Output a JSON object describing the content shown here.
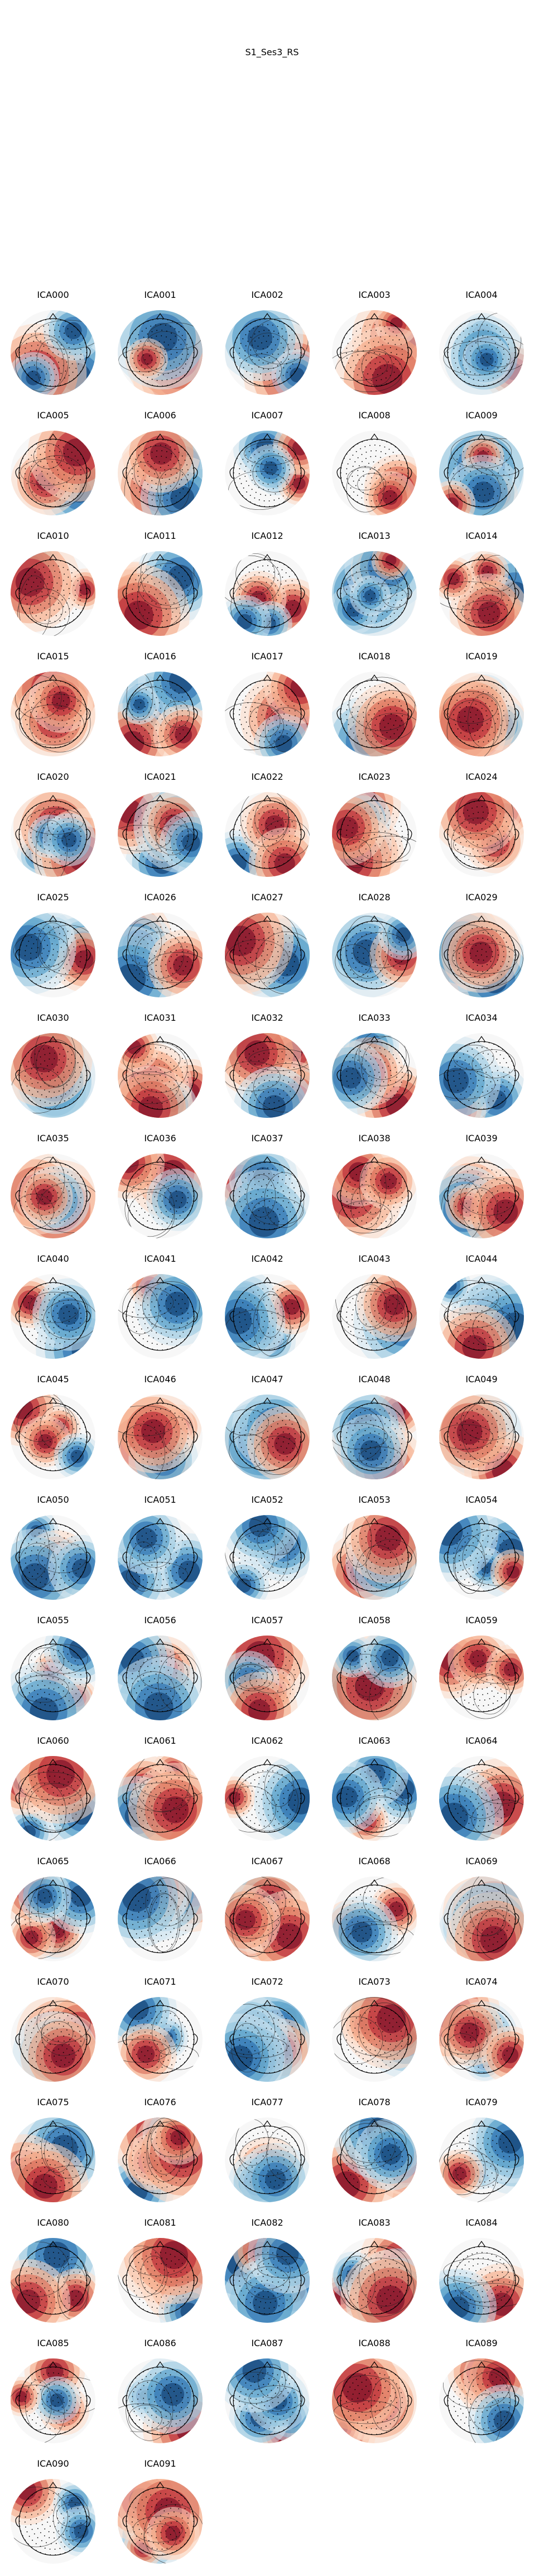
{
  "figure": {
    "title": "S1_Ses3_RS",
    "colormap": [
      "#053061",
      "#2166ac",
      "#4393c3",
      "#92c5de",
      "#d1e5f0",
      "#f7f7f7",
      "#fddbc7",
      "#f4a582",
      "#d6604d",
      "#b2182b",
      "#67001f"
    ],
    "outline_color": "#000000",
    "sensor_color": "#000000"
  },
  "components": [
    "ICA000",
    "ICA001",
    "ICA002",
    "ICA003",
    "ICA004",
    "ICA005",
    "ICA006",
    "ICA007",
    "ICA008",
    "ICA009",
    "ICA010",
    "ICA011",
    "ICA012",
    "ICA013",
    "ICA014",
    "ICA015",
    "ICA016",
    "ICA017",
    "ICA018",
    "ICA019",
    "ICA020",
    "ICA021",
    "ICA022",
    "ICA023",
    "ICA024",
    "ICA025",
    "ICA026",
    "ICA027",
    "ICA028",
    "ICA029",
    "ICA030",
    "ICA031",
    "ICA032",
    "ICA033",
    "ICA034",
    "ICA035",
    "ICA036",
    "ICA037",
    "ICA038",
    "ICA039",
    "ICA040",
    "ICA041",
    "ICA042",
    "ICA043",
    "ICA044",
    "ICA045",
    "ICA046",
    "ICA047",
    "ICA048",
    "ICA049",
    "ICA050",
    "ICA051",
    "ICA052",
    "ICA053",
    "ICA054",
    "ICA055",
    "ICA056",
    "ICA057",
    "ICA058",
    "ICA059",
    "ICA060",
    "ICA061",
    "ICA062",
    "ICA063",
    "ICA064",
    "ICA065",
    "ICA066",
    "ICA067",
    "ICA068",
    "ICA069",
    "ICA070",
    "ICA071",
    "ICA072",
    "ICA073",
    "ICA074",
    "ICA075",
    "ICA076",
    "ICA077",
    "ICA078",
    "ICA079",
    "ICA080",
    "ICA081",
    "ICA082",
    "ICA083",
    "ICA084",
    "ICA085",
    "ICA086",
    "ICA087",
    "ICA088",
    "ICA089",
    "ICA090",
    "ICA091"
  ]
}
